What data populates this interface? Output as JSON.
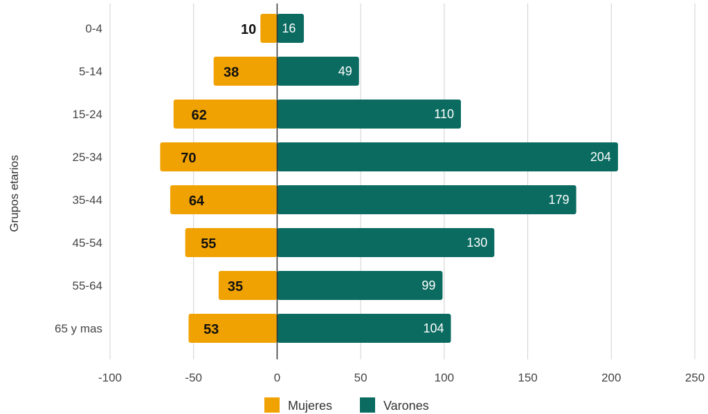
{
  "chart_data": {
    "type": "bar",
    "orientation": "horizontal",
    "stacked": true,
    "categories": [
      "0-4",
      "5-14",
      "15-24",
      "25-34",
      "35-44",
      "45-54",
      "55-64",
      "65 y mas"
    ],
    "series": [
      {
        "name": "Mujeres",
        "values": [
          -10,
          -38,
          -62,
          -70,
          -64,
          -55,
          -35,
          -53
        ],
        "labels": [
          "10",
          "38",
          "62",
          "70",
          "64",
          "55",
          "35",
          "53"
        ],
        "color": "#f0a202"
      },
      {
        "name": "Varones",
        "values": [
          16,
          49,
          110,
          204,
          179,
          130,
          99,
          104
        ],
        "labels": [
          "16",
          "49",
          "110",
          "204",
          "179",
          "130",
          "99",
          "104"
        ],
        "color": "#0b6b60"
      }
    ],
    "xlim": [
      -100,
      250
    ],
    "xticks": [
      -100,
      -50,
      0,
      50,
      100,
      150,
      200,
      250
    ],
    "title": "",
    "xlabel": "",
    "ylabel": "Grupos etarios",
    "grid": "vertical",
    "legend": "bottom"
  }
}
